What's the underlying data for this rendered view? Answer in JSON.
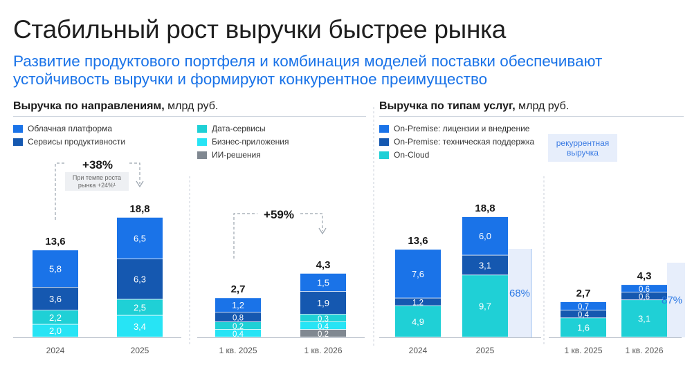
{
  "title": "Стабильный рост выручки быстрее рынка",
  "subtitle": "Развитие продуктового портфеля и комбинация моделей поставки обеспечивают устойчивость выручки и формируют конкурентное преимущество",
  "colors": {
    "cloud_platform": "#1a73e8",
    "productivity": "#1558b0",
    "data_services": "#1fd0d6",
    "business_apps": "#27e4f5",
    "ai": "#808891",
    "onprem_license": "#1a73e8",
    "onprem_support": "#1558b0",
    "oncloud": "#1fd0d6"
  },
  "left": {
    "heading_bold": "Выручка по направлениям,",
    "heading_unit": " млрд руб.",
    "legend": [
      "Облачная платформа",
      "Сервисы продуктивности",
      "Дата-сервисы",
      "Бизнес-приложения",
      "ИИ-решения"
    ],
    "growth_year": "+38%",
    "growth_year_note1": "При темпе роста",
    "growth_year_note2": "рынка +24%¹",
    "growth_quarter": "+59%"
  },
  "right": {
    "heading_bold": "Выручка по типам услуг,",
    "heading_unit": " млрд руб.",
    "legend": [
      "On-Premise: лицензии и внедрение",
      "On-Premise: техническая поддержка",
      "On-Cloud"
    ],
    "recurring_line1": "рекуррентная",
    "recurring_line2": "выручка",
    "recurring_year": "68%",
    "recurring_quarter": "87%"
  },
  "chart_data": [
    {
      "type": "bar",
      "title": "Выручка по направлениям, млрд руб.",
      "categories": [
        "2024",
        "2025"
      ],
      "totals": [
        "13,6",
        "18,8"
      ],
      "series": [
        {
          "name": "ИИ-решения",
          "values": [
            0,
            0
          ],
          "labels": [
            "",
            ""
          ]
        },
        {
          "name": "Бизнес-приложения",
          "values": [
            2.0,
            3.4
          ],
          "labels": [
            "2,0",
            "3,4"
          ]
        },
        {
          "name": "Дата-сервисы",
          "values": [
            2.2,
            2.5
          ],
          "labels": [
            "2,2",
            "2,5"
          ]
        },
        {
          "name": "Сервисы продуктивности",
          "values": [
            3.6,
            6.3
          ],
          "labels": [
            "3,6",
            "6,3"
          ]
        },
        {
          "name": "Облачная платформа",
          "values": [
            5.8,
            6.5
          ],
          "labels": [
            "5,8",
            "6,5"
          ]
        }
      ]
    },
    {
      "type": "bar",
      "title": "Выручка по направлениям, млрд руб.",
      "categories": [
        "1 кв. 2025",
        "1 кв. 2026"
      ],
      "totals": [
        "2,7",
        "4,3"
      ],
      "series": [
        {
          "name": "ИИ-решения",
          "values": [
            0,
            0.2
          ],
          "labels": [
            "",
            "0,2"
          ]
        },
        {
          "name": "Бизнес-приложения",
          "values": [
            0.4,
            0.4
          ],
          "labels": [
            "0,4",
            "0,4"
          ]
        },
        {
          "name": "Дата-сервисы",
          "values": [
            0.2,
            0.3
          ],
          "labels": [
            "0,2",
            "0,3"
          ]
        },
        {
          "name": "Сервисы продуктивности",
          "values": [
            0.8,
            1.9
          ],
          "labels": [
            "0,8",
            "1,9"
          ]
        },
        {
          "name": "Облачная платформа",
          "values": [
            1.2,
            1.5
          ],
          "labels": [
            "1,2",
            "1,5"
          ]
        }
      ]
    },
    {
      "type": "bar",
      "title": "Выручка по типам услуг, млрд руб.",
      "categories": [
        "2024",
        "2025"
      ],
      "totals": [
        "13,6",
        "18,8"
      ],
      "series": [
        {
          "name": "On-Cloud",
          "values": [
            4.9,
            9.7
          ],
          "labels": [
            "4,9",
            "9,7"
          ]
        },
        {
          "name": "On-Premise: техническая поддержка",
          "values": [
            1.2,
            3.1
          ],
          "labels": [
            "1,2",
            "3,1"
          ]
        },
        {
          "name": "On-Premise: лицензии и внедрение",
          "values": [
            7.6,
            6.0
          ],
          "labels": [
            "7,6",
            "6,0"
          ]
        }
      ]
    },
    {
      "type": "bar",
      "title": "Выручка по типам услуг, млрд руб.",
      "categories": [
        "1 кв. 2025",
        "1 кв. 2026"
      ],
      "totals": [
        "2,7",
        "4,3"
      ],
      "series": [
        {
          "name": "On-Cloud",
          "values": [
            1.6,
            3.1
          ],
          "labels": [
            "1,6",
            "3,1"
          ]
        },
        {
          "name": "On-Premise: техническая поддержка",
          "values": [
            0.4,
            0.6
          ],
          "labels": [
            "0,4",
            "0,6"
          ]
        },
        {
          "name": "On-Premise: лицензии и внедрение",
          "values": [
            0.7,
            0.6
          ],
          "labels": [
            "0,7",
            "0,6"
          ]
        }
      ]
    }
  ]
}
